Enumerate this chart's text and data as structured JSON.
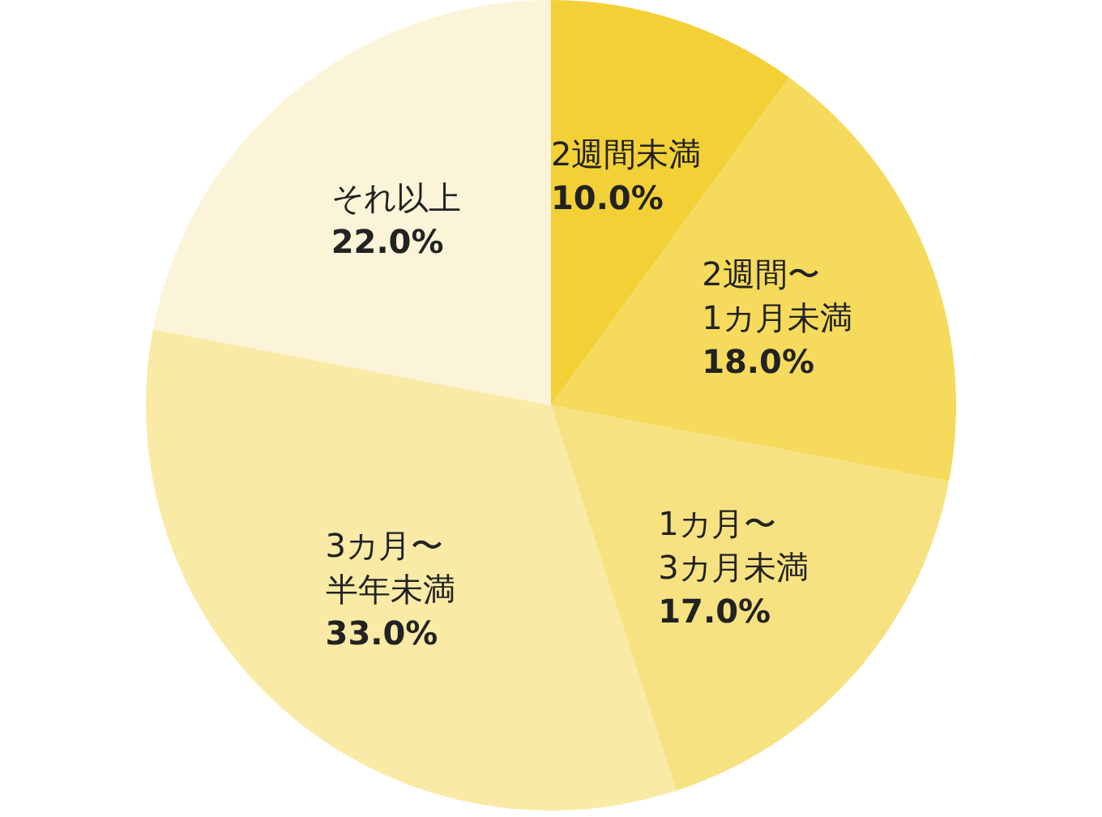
{
  "chart_data": {
    "type": "pie",
    "categories": [
      "2週間未満",
      "2週間〜1カ月未満",
      "1カ月〜3カ月未満",
      "3カ月〜半年未満",
      "それ以上"
    ],
    "values": [
      10,
      18,
      17,
      33,
      22
    ],
    "value_labels": [
      "10.0%",
      "18.0%",
      "17.0%",
      "33.0%",
      "22.0%"
    ],
    "colors": [
      "#f3d036",
      "#f5da5c",
      "#f7e282",
      "#f9eaa6",
      "#fbf4d8"
    ]
  }
}
